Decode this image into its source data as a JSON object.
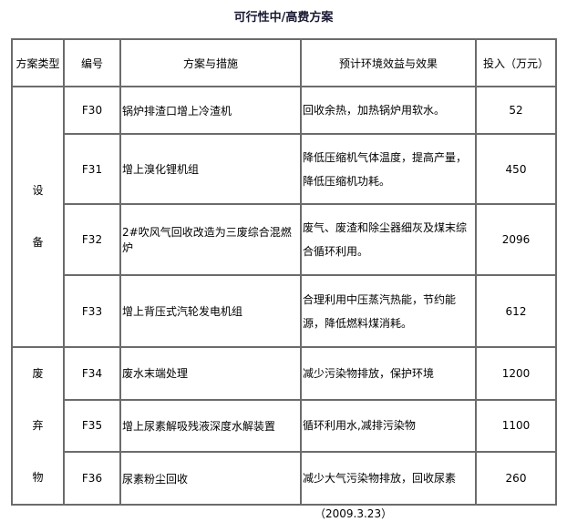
{
  "title": "可行性中/高费方案",
  "headers": [
    "方案类型",
    "编号",
    "方案与措施",
    "预计环境效益与效果",
    "投入（万元）"
  ],
  "groups": [
    {
      "type_chars": [
        "设",
        "备"
      ]
    },
    {
      "type_chars": [
        "废",
        "弃",
        "物"
      ]
    }
  ],
  "rows": [
    {
      "id": "F30",
      "measure": "锅炉排渣口增上冷渣机",
      "effect_lines": [
        "回收余热，加热锅炉用软水。"
      ],
      "investment": "52"
    },
    {
      "id": "F31",
      "measure": "增上溴化锂机组",
      "effect_lines": [
        "降低压缩机气体温度，提高产量，",
        "降低压缩机功耗。"
      ],
      "investment": "450"
    },
    {
      "id": "F32",
      "measure": "2#吹风气回收改造为三废综合混燃炉",
      "effect_lines": [
        "废气、废渣和除尘器细灰及煤末综",
        "合循环利用。"
      ],
      "investment": "2096"
    },
    {
      "id": "F33",
      "measure": "增上背压式汽轮发电机组",
      "effect_lines": [
        "合理利用中压蒸汽热能，节约能",
        "源，降低燃料煤消耗。"
      ],
      "investment": "612"
    },
    {
      "id": "F34",
      "measure": "废水末端处理",
      "effect_lines": [
        "减少污染物排放，保护环境"
      ],
      "investment": "1200"
    },
    {
      "id": "F35",
      "measure": "增上尿素解吸残液深度水解装置",
      "effect_lines": [
        "循环利用水,减排污染物"
      ],
      "investment": "1100"
    },
    {
      "id": "F36",
      "measure": "尿素粉尘回收",
      "effect_lines": [
        "减少大气污染物排放，回收尿素"
      ],
      "investment": "260"
    }
  ],
  "date": "（2009.3.23）"
}
